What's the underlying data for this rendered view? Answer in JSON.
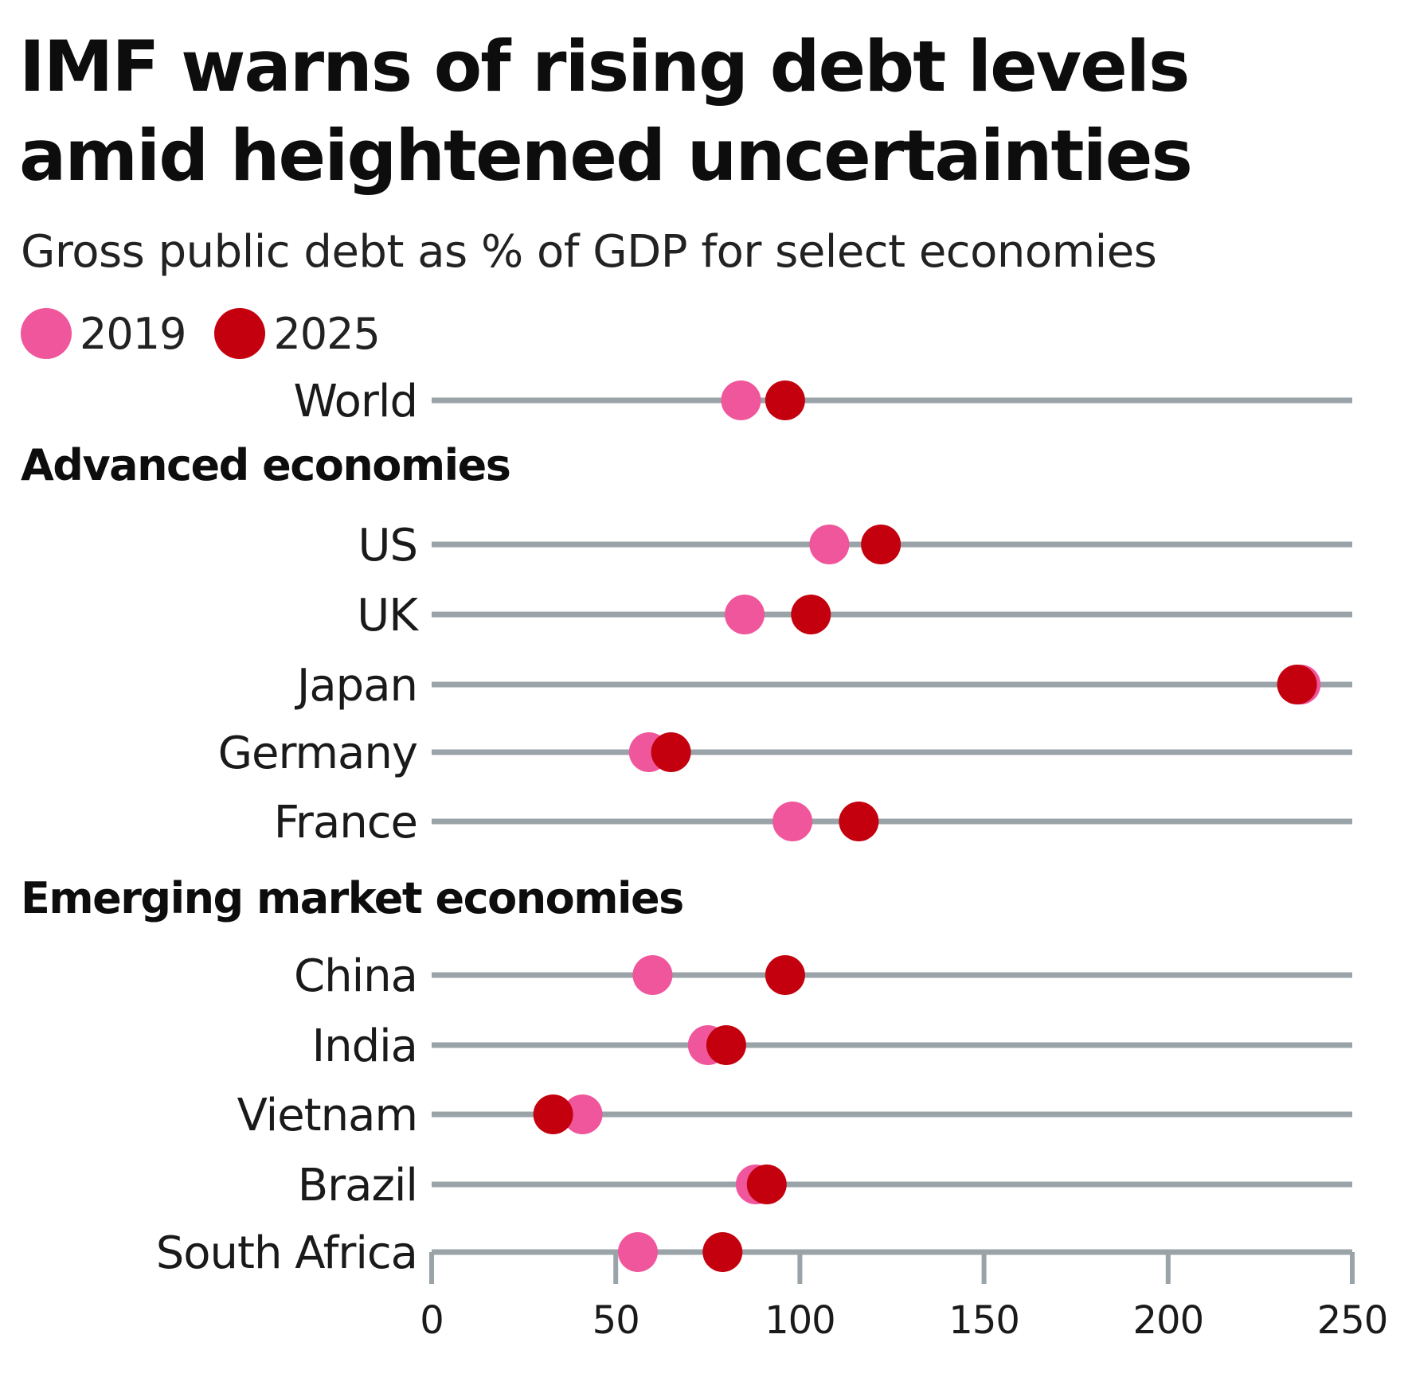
{
  "chart_data": {
    "type": "dot",
    "title": "IMF warns of rising debt levels amid heightened uncertainties",
    "subtitle": "Gross public debt as % of GDP for select economies",
    "series": [
      {
        "name": "2019",
        "color": "#f0569b"
      },
      {
        "name": "2025",
        "color": "#c4000f"
      }
    ],
    "rows": [
      {
        "label": "World",
        "values": [
          84,
          96
        ]
      },
      {
        "group": "Advanced economies"
      },
      {
        "label": "US",
        "values": [
          108,
          122
        ]
      },
      {
        "label": "UK",
        "values": [
          85,
          103
        ]
      },
      {
        "label": "Japan",
        "values": [
          236,
          235
        ]
      },
      {
        "label": "Germany",
        "values": [
          59,
          65
        ]
      },
      {
        "label": "France",
        "values": [
          98,
          116
        ]
      },
      {
        "group": "Emerging market economies"
      },
      {
        "label": "China",
        "values": [
          60,
          96
        ]
      },
      {
        "label": "India",
        "values": [
          75,
          80
        ]
      },
      {
        "label": "Vietnam",
        "values": [
          41,
          33
        ]
      },
      {
        "label": "Brazil",
        "values": [
          88,
          91
        ]
      },
      {
        "label": "South Africa",
        "values": [
          56,
          79
        ]
      }
    ],
    "x_ticks": [
      "0",
      "50",
      "100",
      "150",
      "200",
      "250"
    ],
    "xlim": [
      0,
      250
    ],
    "grid": false,
    "legend_position": "top-left"
  }
}
